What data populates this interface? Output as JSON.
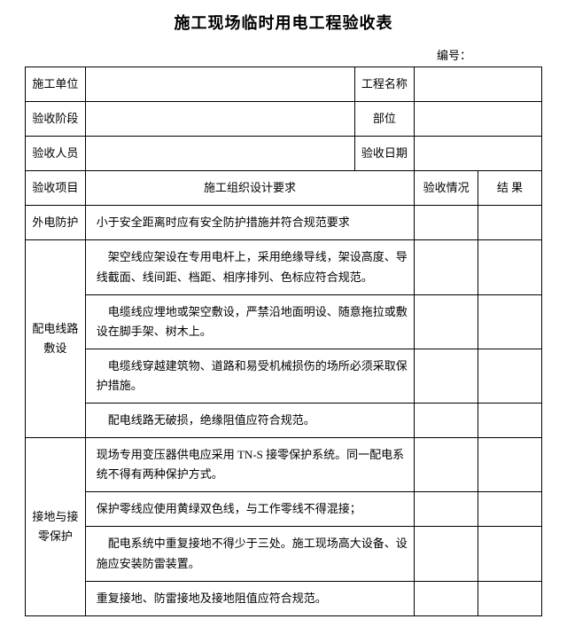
{
  "title": "施工现场临时用电工程验收表",
  "docno_label": "编号：",
  "header": {
    "construction_unit_label": "施工单位",
    "construction_unit_value": "",
    "project_name_label": "工程名称",
    "project_name_value": "",
    "acceptance_stage_label": "验收阶段",
    "acceptance_stage_value": "",
    "part_label": "部位",
    "part_value": "",
    "acceptance_personnel_label": "验收人员",
    "acceptance_personnel_value": "",
    "acceptance_date_label": "验收日期",
    "acceptance_date_value": ""
  },
  "columns": {
    "item": "验收项目",
    "design_req": "施工组织设计要求",
    "status": "验收情况",
    "result": "结 果"
  },
  "sections": [
    {
      "name": "外电防护",
      "rows": [
        {
          "req": "小于安全距离时应有安全防护措施并符合规范要求",
          "status": "",
          "result": ""
        }
      ]
    },
    {
      "name": "配电线路敷设",
      "rows": [
        {
          "req": "架空线应架设在专用电杆上，采用绝缘导线，架设高度、导线截面、线间距、档距、相序排列、色标应符合规范。",
          "status": "",
          "result": ""
        },
        {
          "req": "电缆线应埋地或架空敷设，严禁沿地面明设、随意拖拉或敷设在脚手架、树木上。",
          "status": "",
          "result": ""
        },
        {
          "req": "电缆线穿越建筑物、道路和易受机械损伤的场所必须采取保护措施。",
          "status": "",
          "result": ""
        },
        {
          "req": "配电线路无破损，绝缘阻值应符合规范。",
          "status": "",
          "result": ""
        }
      ]
    },
    {
      "name": "接地与接零保护",
      "rows": [
        {
          "req": "现场专用变压器供电应采用 TN-S 接零保护系统。同一配电系统不得有两种保护方式。",
          "status": "",
          "result": ""
        },
        {
          "req": "保护零线应使用黄绿双色线，与工作零线不得混接；",
          "status": "",
          "result": ""
        },
        {
          "req": "配电系统中重复接地不得少于三处。施工现场高大设备、设施应安装防雷装置。",
          "status": "",
          "result": ""
        },
        {
          "req": "重复接地、防雷接地及接地阻值应符合规范。",
          "status": "",
          "result": ""
        }
      ]
    }
  ]
}
